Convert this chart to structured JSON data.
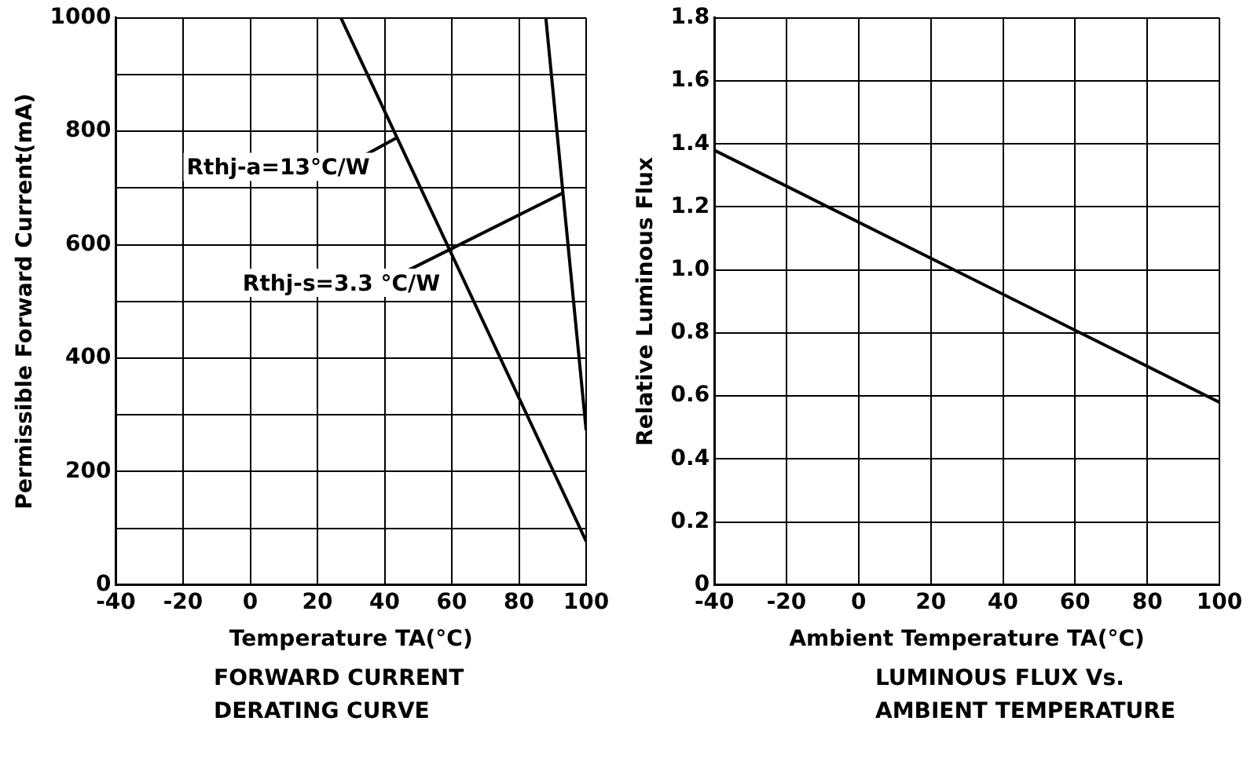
{
  "chart_data": [
    {
      "type": "line",
      "title": "FORWARD CURRENT DERATING CURVE",
      "xlabel": "Temperature TA(°C)",
      "ylabel": "Permissible Forward Current(mA)",
      "xlim": [
        -40,
        100
      ],
      "xticks": [
        -40,
        -20,
        0,
        20,
        40,
        60,
        80,
        100
      ],
      "ylim": [
        0,
        1000
      ],
      "yticks": [
        0,
        {
          "value": 100,
          "label": null
        },
        200,
        {
          "value": 300,
          "label": null
        },
        400,
        {
          "value": 500,
          "label": null
        },
        600,
        {
          "value": 700,
          "label": null
        },
        800,
        {
          "value": 900,
          "label": null
        },
        1000
      ],
      "grid": true,
      "marker": "none",
      "line_style": "solid",
      "series": [
        {
          "color": "#000000",
          "x": [
            27,
            100
          ],
          "values": [
            1000,
            77
          ]
        },
        {
          "color": "#000000",
          "x": [
            88,
            100
          ],
          "values": [
            1000,
            273
          ]
        }
      ],
      "annotations": [
        {
          "text": "Rthj-a=13°C/W",
          "x": 44,
          "y": 790
        },
        {
          "text": "Rthj-s=3.3 °C/W",
          "x": 93,
          "y": 691
        }
      ]
    },
    {
      "type": "line",
      "title": "LUMINOUS FLUX Vs. AMBIENT TEMPERATURE",
      "xlabel": "Ambient Temperature TA(°C)",
      "ylabel": "Relative Luminous Flux",
      "xlim": [
        -40,
        100
      ],
      "xticks": [
        -40,
        -20,
        0,
        20,
        40,
        60,
        80,
        100
      ],
      "ylim": [
        0,
        1.8
      ],
      "yticks": [
        0,
        0.2,
        0.4,
        0.6,
        0.8,
        {
          "value": 1,
          "label": "1.0"
        },
        1.2,
        1.4,
        1.6,
        1.8
      ],
      "grid": true,
      "marker": "none",
      "line_style": "solid",
      "series": [
        {
          "color": "#000000",
          "x": [
            -40,
            100
          ],
          "values": [
            1.38,
            0.58
          ]
        }
      ]
    }
  ]
}
